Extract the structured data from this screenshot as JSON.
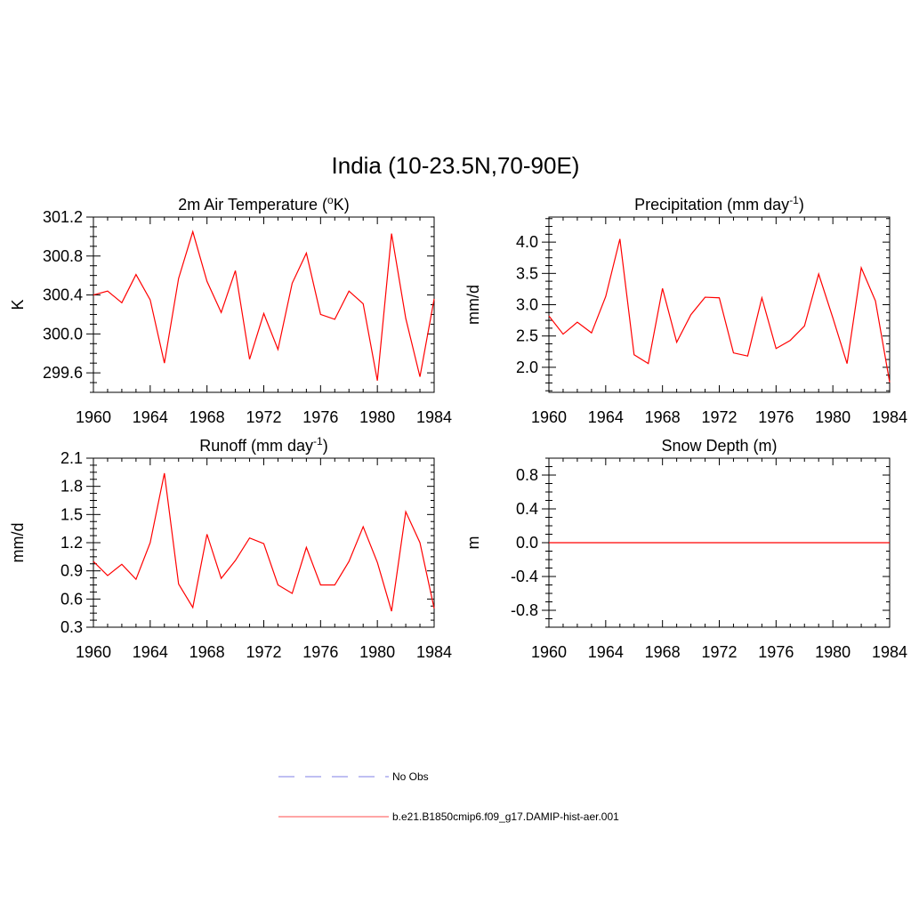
{
  "title": "India (10-23.5N,70-90E)",
  "colors": {
    "model": "#ff0000",
    "obs": "#aaaaee",
    "axis": "#000000"
  },
  "legend": {
    "entries": [
      {
        "label": "No Obs",
        "style": "dashed",
        "color": "#aaaaee"
      },
      {
        "label": "b.e21.B1850cmip6.f09_g17.DAMIP-hist-aer.001",
        "style": "solid",
        "color": "#ff8888"
      }
    ]
  },
  "chart_data": [
    {
      "type": "line",
      "title": "2m Air Temperature (°K)",
      "ylabel": "K",
      "xlim": [
        1960,
        1984
      ],
      "ylim": [
        299.4,
        301.2
      ],
      "xticks": [
        1960,
        1964,
        1968,
        1972,
        1976,
        1980,
        1984
      ],
      "yticks": [
        299.6,
        300.0,
        300.4,
        300.8,
        301.2
      ],
      "ytick_labels": [
        "299.6",
        "300.0",
        "300.4",
        "300.8",
        "301.2"
      ],
      "x": [
        1960,
        1961,
        1962,
        1963,
        1964,
        1965,
        1966,
        1967,
        1968,
        1969,
        1970,
        1971,
        1972,
        1973,
        1974,
        1975,
        1976,
        1977,
        1978,
        1979,
        1980,
        1981,
        1982,
        1983,
        1984
      ],
      "series": [
        {
          "values": [
            300.4,
            300.44,
            300.32,
            300.61,
            300.35,
            299.7,
            300.57,
            301.05,
            300.54,
            300.22,
            300.65,
            299.74,
            300.21,
            299.84,
            300.52,
            300.83,
            300.2,
            300.15,
            300.44,
            300.31,
            299.52,
            301.03,
            300.16,
            299.56,
            300.36
          ]
        }
      ]
    },
    {
      "type": "line",
      "title": "Precipitation (mm day-1)",
      "ylabel": "mm/d",
      "xlim": [
        1960,
        1984
      ],
      "ylim": [
        1.6,
        4.4
      ],
      "xticks": [
        1960,
        1964,
        1968,
        1972,
        1976,
        1980,
        1984
      ],
      "yticks": [
        2.0,
        2.5,
        3.0,
        3.5,
        4.0
      ],
      "ytick_labels": [
        "2.0",
        "2.5",
        "3.0",
        "3.5",
        "4.0"
      ],
      "x": [
        1960,
        1961,
        1962,
        1963,
        1964,
        1965,
        1966,
        1967,
        1968,
        1969,
        1970,
        1971,
        1972,
        1973,
        1974,
        1975,
        1976,
        1977,
        1978,
        1979,
        1980,
        1981,
        1982,
        1983,
        1984
      ],
      "series": [
        {
          "values": [
            2.82,
            2.53,
            2.72,
            2.55,
            3.13,
            4.05,
            2.2,
            2.06,
            3.26,
            2.4,
            2.84,
            3.12,
            3.11,
            2.23,
            2.18,
            3.11,
            2.3,
            2.43,
            2.66,
            3.49,
            2.79,
            2.06,
            3.59,
            3.06,
            1.76
          ]
        }
      ]
    },
    {
      "type": "line",
      "title": "Runoff (mm day-1)",
      "ylabel": "mm/d",
      "xlim": [
        1960,
        1984
      ],
      "ylim": [
        0.3,
        2.1
      ],
      "xticks": [
        1960,
        1964,
        1968,
        1972,
        1976,
        1980,
        1984
      ],
      "yticks": [
        0.3,
        0.6,
        0.9,
        1.2,
        1.5,
        1.8,
        2.1
      ],
      "ytick_labels": [
        "0.3",
        "0.6",
        "0.9",
        "1.2",
        "1.5",
        "1.8",
        "2.1"
      ],
      "x": [
        1960,
        1961,
        1962,
        1963,
        1964,
        1965,
        1966,
        1967,
        1968,
        1969,
        1970,
        1971,
        1972,
        1973,
        1974,
        1975,
        1976,
        1977,
        1978,
        1979,
        1980,
        1981,
        1982,
        1983,
        1984
      ],
      "series": [
        {
          "values": [
            1.0,
            0.85,
            0.97,
            0.81,
            1.2,
            1.94,
            0.76,
            0.51,
            1.29,
            0.82,
            1.01,
            1.25,
            1.19,
            0.75,
            0.66,
            1.15,
            0.75,
            0.75,
            1.0,
            1.37,
            0.99,
            0.47,
            1.53,
            1.2,
            0.5
          ]
        }
      ]
    },
    {
      "type": "line",
      "title": "Snow Depth (m)",
      "ylabel": "m",
      "xlim": [
        1960,
        1984
      ],
      "ylim": [
        -1.0,
        1.0
      ],
      "xticks": [
        1960,
        1964,
        1968,
        1972,
        1976,
        1980,
        1984
      ],
      "yticks": [
        -0.8,
        -0.4,
        0.0,
        0.4,
        0.8
      ],
      "ytick_labels": [
        "-0.8",
        "-0.4",
        "0.0",
        "0.4",
        "0.8"
      ],
      "x": [
        1960,
        1984
      ],
      "series": [
        {
          "values": [
            0.0,
            0.0
          ]
        }
      ]
    }
  ]
}
